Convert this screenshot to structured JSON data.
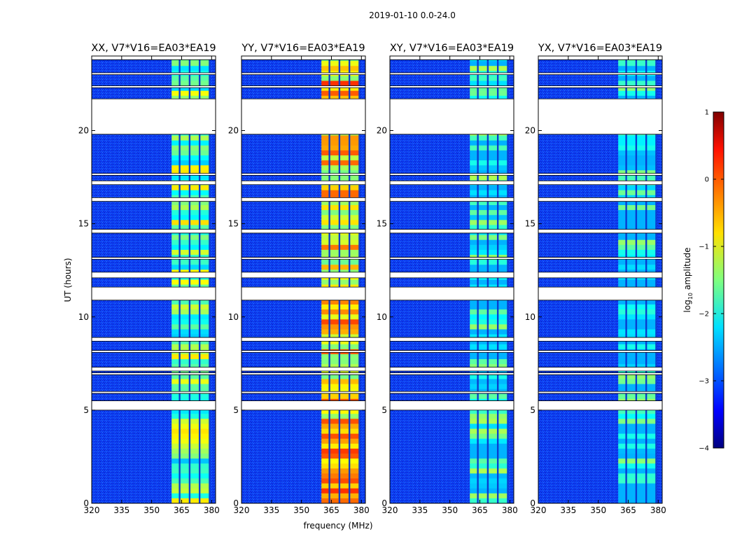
{
  "chart_data": {
    "type": "heatmap",
    "suptitle": "2019-01-10 0.0-24.0",
    "xlabel": "frequency (MHz)",
    "ylabel": "UT (hours)",
    "xlim": [
      320,
      382
    ],
    "ylim": [
      0,
      24
    ],
    "xticks": [
      320,
      335,
      350,
      365,
      380
    ],
    "yticks": [
      0,
      5,
      10,
      15,
      20
    ],
    "panels": [
      {
        "title": "XX, V7*V16=EA03*EA19",
        "band_level": 0.45
      },
      {
        "title": "YY, V7*V16=EA03*EA19",
        "band_level": 0.62
      },
      {
        "title": "XY, V7*V16=EA03*EA19",
        "band_level": 0.35
      },
      {
        "title": "YX, V7*V16=EA03*EA19",
        "band_level": 0.32
      }
    ],
    "band_frequency_range": [
      360,
      379
    ],
    "band_dividers": [
      364,
      369,
      374,
      379
    ],
    "flagged_time_ranges": [
      [
        5.0,
        5.5
      ],
      [
        5.9,
        6.0
      ],
      [
        6.9,
        7.0
      ],
      [
        7.1,
        7.3
      ],
      [
        8.1,
        8.2
      ],
      [
        8.7,
        8.9
      ],
      [
        10.9,
        11.6
      ],
      [
        12.1,
        12.4
      ],
      [
        13.1,
        13.2
      ],
      [
        14.5,
        14.7
      ],
      [
        16.2,
        16.4
      ],
      [
        17.1,
        17.3
      ],
      [
        17.6,
        17.7
      ],
      [
        19.8,
        21.7
      ],
      [
        22.3,
        22.4
      ],
      [
        23.0,
        23.1
      ],
      [
        23.8,
        24.0
      ]
    ],
    "colorbar": {
      "label_prefix": "log",
      "label_subscript": "10",
      "label_suffix": " amplitude",
      "min": -4,
      "max": 1,
      "ticks": [
        "1",
        "0",
        "−1",
        "−2",
        "−3",
        "−4"
      ],
      "colormap": "jet"
    }
  }
}
